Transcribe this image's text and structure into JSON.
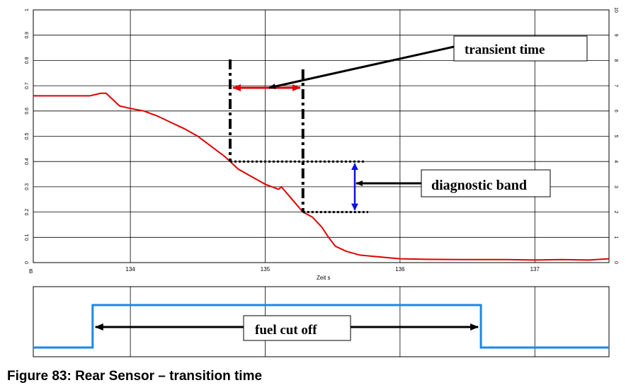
{
  "chart_data": [
    {
      "type": "line",
      "title": "",
      "xlabel": "Zeit s",
      "ylabel": "",
      "xlim": [
        133.28,
        137.55
      ],
      "ylim": [
        0,
        1
      ],
      "x_ticks": [
        134,
        135,
        136,
        137
      ],
      "x_tick_labels": [
        "134",
        "135",
        "136",
        "137"
      ],
      "x_origin_label": "B",
      "y_ticks": [
        0,
        0.1,
        0.2,
        0.3,
        0.4,
        0.5,
        0.6,
        0.7,
        0.8,
        0.9,
        1
      ],
      "y_tick_labels": [
        "0",
        "0.1",
        "0.2",
        "0.3",
        "0.4",
        "0.5",
        "0.6",
        "0.7",
        "0.8",
        "0.9",
        "1"
      ],
      "y2_tick_labels": [
        "0",
        "1",
        "2",
        "3",
        "4",
        "5",
        "6",
        "7",
        "8",
        "9",
        "10"
      ],
      "grid": true,
      "series": [
        {
          "color": "#e00000",
          "x": [
            133.28,
            133.5,
            133.7,
            133.78,
            133.82,
            133.86,
            133.92,
            134.0,
            134.1,
            134.2,
            134.3,
            134.4,
            134.5,
            134.6,
            134.7,
            134.74,
            134.8,
            134.9,
            135.0,
            135.1,
            135.12,
            135.2,
            135.28,
            135.35,
            135.42,
            135.47,
            135.52,
            135.6,
            135.7,
            135.8,
            135.9,
            136.0,
            136.2,
            136.5,
            136.8,
            137.0,
            137.2,
            137.4,
            137.55
          ],
          "y": [
            0.66,
            0.66,
            0.66,
            0.67,
            0.67,
            0.65,
            0.62,
            0.61,
            0.6,
            0.58,
            0.555,
            0.53,
            0.5,
            0.46,
            0.42,
            0.4,
            0.37,
            0.34,
            0.31,
            0.29,
            0.3,
            0.25,
            0.2,
            0.18,
            0.14,
            0.1,
            0.065,
            0.045,
            0.03,
            0.025,
            0.02,
            0.015,
            0.013,
            0.012,
            0.012,
            0.01,
            0.012,
            0.01,
            0.015
          ]
        }
      ],
      "annotations": {
        "transient_label": "transient time",
        "band_label": "diagnostic band",
        "t_start": 134.74,
        "t_end": 135.28,
        "band_upper": 0.4,
        "band_lower": 0.2
      }
    },
    {
      "type": "line",
      "title": "",
      "xlim": [
        133.28,
        137.55
      ],
      "series": [
        {
          "color": "#1a88e6",
          "x": [
            133.28,
            133.72,
            133.72,
            136.6,
            136.6,
            137.55
          ],
          "y": [
            0,
            0,
            1,
            1,
            0,
            0
          ]
        }
      ],
      "annotations": {
        "label": "fuel cut off",
        "t_start": 133.72,
        "t_end": 136.6
      }
    }
  ],
  "caption": "Figure 83: Rear Sensor – transition time"
}
